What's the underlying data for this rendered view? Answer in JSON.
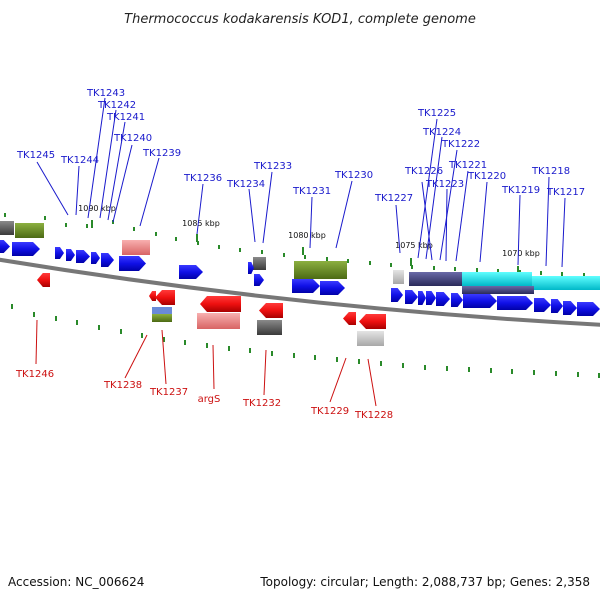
{
  "map": {
    "title": "Thermococcus kodakarensis KOD1, complete genome",
    "accession": "Accession: NC_006624",
    "summary": "Topology: circular; Length: 2,088,737 bp; Genes: 2,358",
    "kbp_labels": [
      "1090 kbp",
      "1085 kbp",
      "1080 kbp",
      "1075 kbp",
      "1070 kbp"
    ],
    "top_labels": [
      "TK1243",
      "TK1242",
      "TK1241",
      "TK1240",
      "TK1245",
      "TK1244",
      "TK1239",
      "TK1236",
      "TK1234",
      "TK1233",
      "TK1231",
      "TK1230",
      "TK1227",
      "TK1225",
      "TK1224",
      "TK1222",
      "TK1226",
      "TK1223",
      "TK1221",
      "TK1220",
      "TK1219",
      "TK1218",
      "TK1217"
    ],
    "bottom_labels": [
      "TK1246",
      "TK1238",
      "TK1237",
      "argS",
      "TK1232",
      "TK1229",
      "TK1228"
    ],
    "colors": {
      "forward_gene": "#1010e0",
      "reverse_gene": "#ee1111",
      "top_label": "#1a1acc",
      "bottom_label": "#cc1111",
      "backbone": "#777777",
      "tick": "#2a8a2a"
    }
  }
}
